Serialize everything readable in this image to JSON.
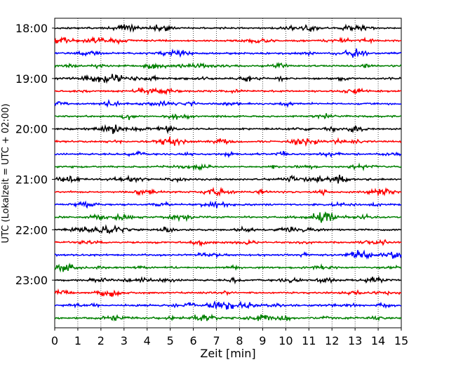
{
  "chart_data": {
    "type": "line",
    "xlabel": "Zeit  [min]",
    "ylabel": "UTC (Lokalzeit = UTC + 02:00)",
    "xlim": [
      0,
      15
    ],
    "xticks": [
      "0",
      "1",
      "2",
      "3",
      "4",
      "5",
      "6",
      "7",
      "8",
      "9",
      "10",
      "11",
      "12",
      "13",
      "14",
      "15"
    ],
    "ytick_labels": [
      "18:00",
      "19:00",
      "20:00",
      "21:00",
      "22:00",
      "23:00"
    ],
    "trace_start": "18:00",
    "trace_end": "23:45",
    "trace_interval_min": 15,
    "trace_colors": [
      "#000000",
      "#ff0000",
      "#0000ff",
      "#008000"
    ],
    "grid": "vertical dotted at each minute"
  }
}
